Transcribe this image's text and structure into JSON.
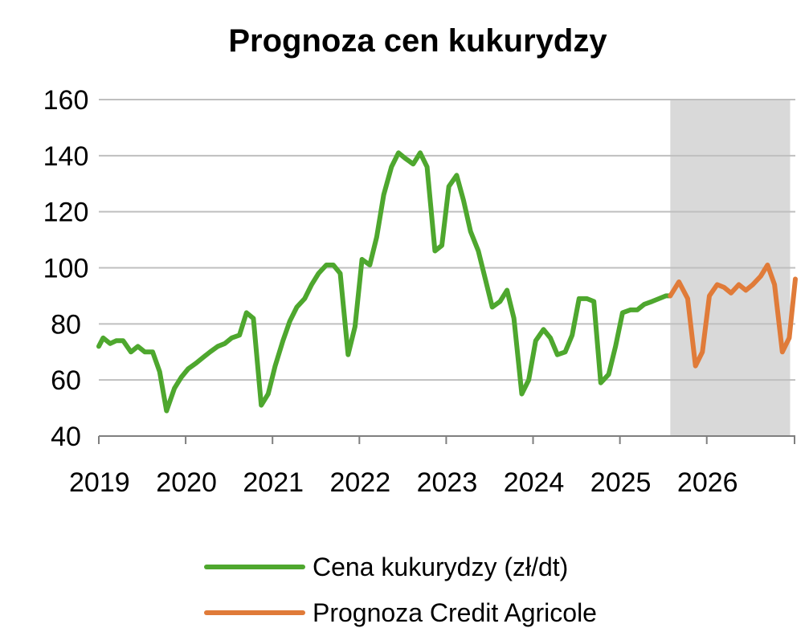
{
  "chart_data": {
    "type": "line",
    "title": "Prognoza cen kukurydzy",
    "xlabel": "",
    "ylabel": "",
    "ylim": [
      40,
      160
    ],
    "yticks": [
      "40",
      "60",
      "80",
      "100",
      "120",
      "140",
      "160"
    ],
    "xticks": [
      "2019",
      "2020",
      "2021",
      "2022",
      "2023",
      "2024",
      "2025",
      "2026"
    ],
    "grid": true,
    "legend_position": "bottom",
    "shaded_forecast_region": {
      "from": 2025.58,
      "to": 2026.96,
      "color": "#d9d9d9"
    },
    "series": [
      {
        "name": "Cena kukurydzy (zł/dt)",
        "color": "#4ea72e",
        "points": [
          [
            2019.0,
            72
          ],
          [
            2019.05,
            75
          ],
          [
            2019.13,
            73
          ],
          [
            2019.2,
            74
          ],
          [
            2019.28,
            74
          ],
          [
            2019.37,
            70
          ],
          [
            2019.45,
            72
          ],
          [
            2019.53,
            70
          ],
          [
            2019.62,
            70
          ],
          [
            2019.7,
            63
          ],
          [
            2019.78,
            49
          ],
          [
            2019.87,
            57
          ],
          [
            2019.95,
            61
          ],
          [
            2020.03,
            64
          ],
          [
            2020.12,
            66
          ],
          [
            2020.2,
            68
          ],
          [
            2020.28,
            70
          ],
          [
            2020.37,
            72
          ],
          [
            2020.45,
            73
          ],
          [
            2020.53,
            75
          ],
          [
            2020.62,
            76
          ],
          [
            2020.7,
            84
          ],
          [
            2020.78,
            82
          ],
          [
            2020.87,
            51
          ],
          [
            2020.95,
            55
          ],
          [
            2021.03,
            65
          ],
          [
            2021.12,
            74
          ],
          [
            2021.2,
            81
          ],
          [
            2021.28,
            86
          ],
          [
            2021.37,
            89
          ],
          [
            2021.45,
            94
          ],
          [
            2021.53,
            98
          ],
          [
            2021.62,
            101
          ],
          [
            2021.7,
            101
          ],
          [
            2021.78,
            98
          ],
          [
            2021.87,
            69
          ],
          [
            2021.95,
            79
          ],
          [
            2022.03,
            103
          ],
          [
            2022.12,
            101
          ],
          [
            2022.2,
            111
          ],
          [
            2022.28,
            126
          ],
          [
            2022.37,
            136
          ],
          [
            2022.45,
            141
          ],
          [
            2022.53,
            139
          ],
          [
            2022.62,
            137
          ],
          [
            2022.7,
            141
          ],
          [
            2022.78,
            136
          ],
          [
            2022.87,
            106
          ],
          [
            2022.95,
            108
          ],
          [
            2023.03,
            129
          ],
          [
            2023.12,
            133
          ],
          [
            2023.2,
            124
          ],
          [
            2023.28,
            113
          ],
          [
            2023.37,
            106
          ],
          [
            2023.45,
            96
          ],
          [
            2023.53,
            86
          ],
          [
            2023.62,
            88
          ],
          [
            2023.7,
            92
          ],
          [
            2023.78,
            82
          ],
          [
            2023.87,
            55
          ],
          [
            2023.95,
            60
          ],
          [
            2024.03,
            74
          ],
          [
            2024.12,
            78
          ],
          [
            2024.2,
            75
          ],
          [
            2024.28,
            69
          ],
          [
            2024.37,
            70
          ],
          [
            2024.45,
            76
          ],
          [
            2024.53,
            89
          ],
          [
            2024.62,
            89
          ],
          [
            2024.7,
            88
          ],
          [
            2024.78,
            59
          ],
          [
            2024.87,
            62
          ],
          [
            2024.95,
            72
          ],
          [
            2025.03,
            84
          ],
          [
            2025.12,
            85
          ],
          [
            2025.2,
            85
          ],
          [
            2025.28,
            87
          ],
          [
            2025.37,
            88
          ],
          [
            2025.45,
            89
          ],
          [
            2025.53,
            90
          ],
          [
            2025.58,
            90
          ]
        ]
      },
      {
        "name": "Prognoza Credit Agricole",
        "color": "#e07b39",
        "points": [
          [
            2025.58,
            90
          ],
          [
            2025.68,
            95
          ],
          [
            2025.78,
            89
          ],
          [
            2025.87,
            65
          ],
          [
            2025.95,
            70
          ],
          [
            2026.03,
            90
          ],
          [
            2026.12,
            94
          ],
          [
            2026.2,
            93
          ],
          [
            2026.28,
            91
          ],
          [
            2026.37,
            94
          ],
          [
            2026.45,
            92
          ],
          [
            2026.53,
            94
          ],
          [
            2026.62,
            97
          ],
          [
            2026.7,
            101
          ],
          [
            2026.78,
            94
          ],
          [
            2026.87,
            70
          ],
          [
            2026.95,
            75
          ],
          [
            2027.02,
            96
          ]
        ]
      }
    ]
  }
}
